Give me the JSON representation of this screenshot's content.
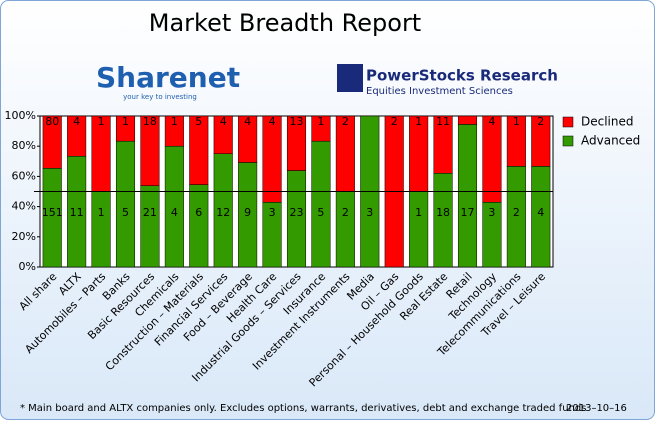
{
  "chart_data": {
    "type": "stacked_percent_bar",
    "title": "Market Breadth Report",
    "categories": [
      "All share",
      "ALTX",
      "Automobiles – Parts",
      "Banks",
      "Basic Resources",
      "Chemicals",
      "Construction – Materials",
      "Financial Services",
      "Food – Beverage",
      "Health Care",
      "Industrial Goods – Services",
      "Insurance",
      "Investment Instruments",
      "Media",
      "Oil – Gas",
      "Personal – Household Goods",
      "Real Estate",
      "Retail",
      "Technology",
      "Telecommunications",
      "Travel – Leisure"
    ],
    "series": [
      {
        "name": "Advanced",
        "color": "#339a00",
        "values": [
          151,
          11,
          1,
          5,
          21,
          4,
          6,
          12,
          9,
          3,
          23,
          5,
          2,
          3,
          0,
          1,
          18,
          17,
          3,
          2,
          4
        ],
        "value_labels": [
          "151",
          "11",
          "1",
          "5",
          "21",
          "4",
          "6",
          "12",
          "9",
          "3",
          "23",
          "5",
          "2",
          "3",
          null,
          "1",
          "18",
          "17",
          "3",
          "2",
          "4"
        ]
      },
      {
        "name": "Declined",
        "color": "#ff0000",
        "values": [
          80,
          4,
          1,
          1,
          18,
          1,
          5,
          4,
          4,
          4,
          13,
          1,
          2,
          0,
          2,
          1,
          11,
          1,
          4,
          1,
          2
        ],
        "value_labels": [
          "80",
          "4",
          "1",
          "1",
          "18",
          "1",
          "5",
          "4",
          "4",
          "4",
          "13",
          "1",
          "2",
          null,
          "2",
          "1",
          "11",
          null,
          "4",
          "1",
          "2"
        ]
      }
    ],
    "ylim": [
      0,
      100
    ],
    "yticks": [
      {
        "value": 0,
        "label": "0%"
      },
      {
        "value": 20,
        "label": "20%"
      },
      {
        "value": 40,
        "label": "40%"
      },
      {
        "value": 60,
        "label": "60%"
      },
      {
        "value": 80,
        "label": "80%"
      },
      {
        "value": 100,
        "label": "100%"
      }
    ],
    "hline": 50,
    "legend": "right",
    "footnote": "* Main board and ALTX companies only. Excludes options, warrants, derivatives, debt and exchange traded funds",
    "date": "2013–10–16"
  },
  "logos": {
    "sharenet": "Sharenet",
    "sharenet_tagline": "your key to investing",
    "powerstocks": "PowerStocks  Research",
    "powerstocks_tagline": "Equities Investment Sciences"
  }
}
